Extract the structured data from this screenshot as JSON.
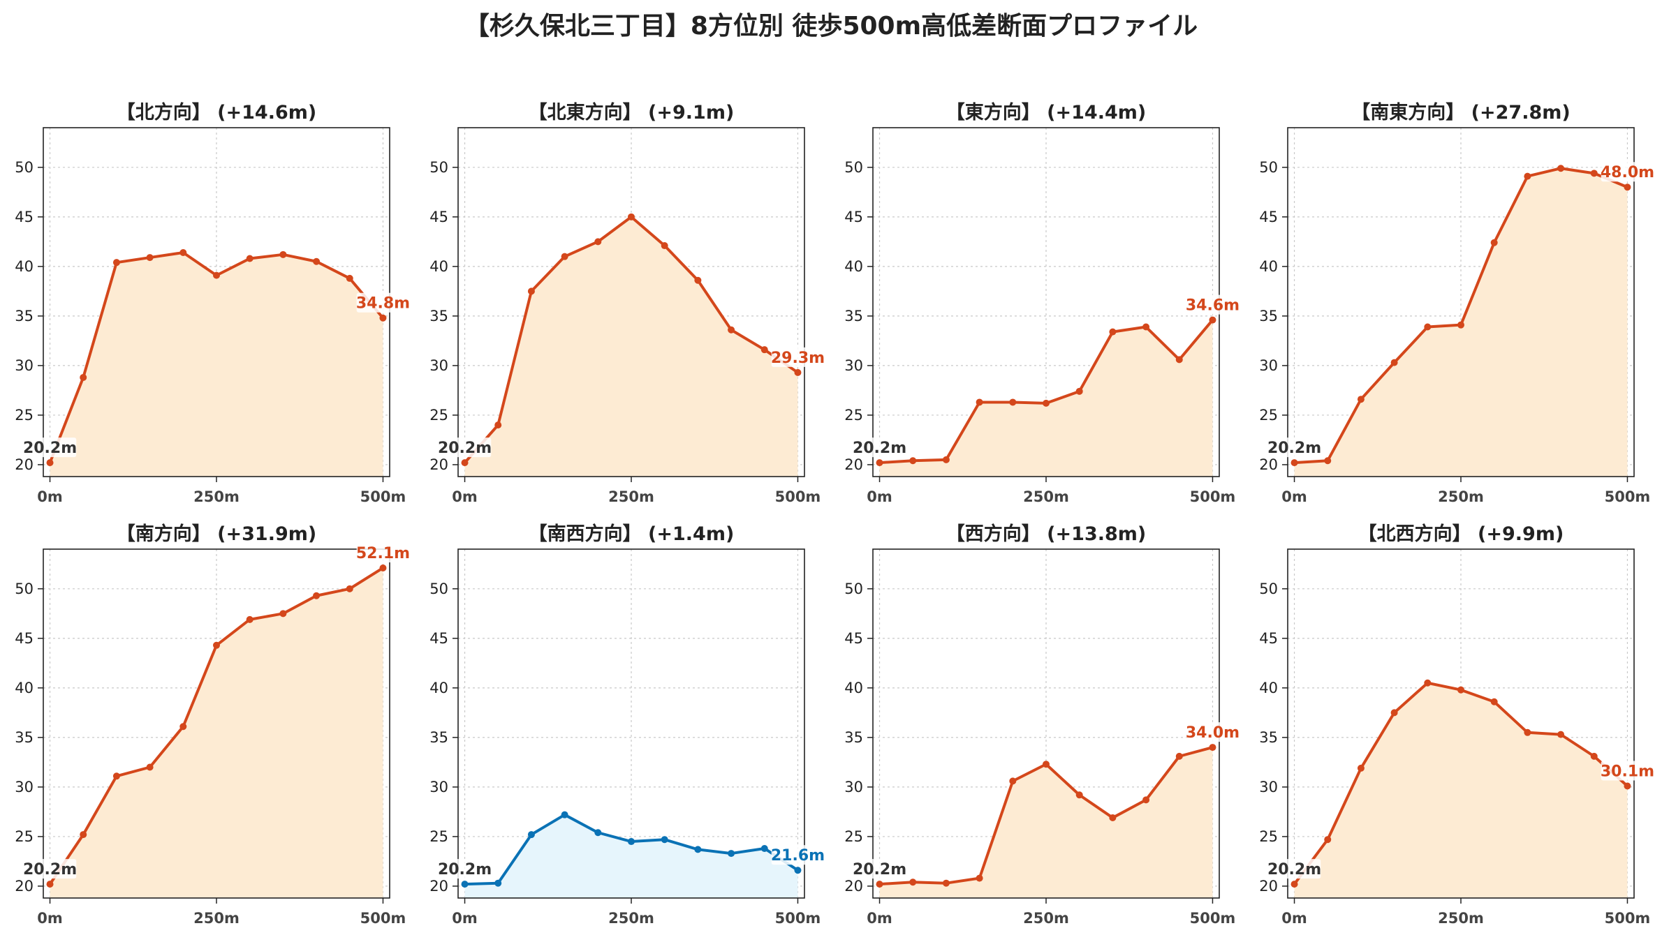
{
  "title": "【杉久保北三丁目】8方位別 徒歩500m高低差断面プロファイル",
  "colors": {
    "up_line": "#d4471b",
    "up_fill": "#fdebd3",
    "flat_line": "#0a72b5",
    "flat_fill": "#e6f5fc",
    "start_label": "#333333",
    "grid": "#c8c8c8",
    "axis": "#222222"
  },
  "chart_data": [
    {
      "type": "area",
      "title": "【北方向】 (+14.6m)",
      "theme": "up",
      "x": [
        0,
        50,
        100,
        150,
        200,
        250,
        300,
        350,
        400,
        450,
        500
      ],
      "y": [
        20.2,
        28.8,
        40.4,
        40.9,
        41.4,
        39.1,
        40.8,
        41.2,
        40.5,
        38.8,
        34.8
      ],
      "start_label": "20.2m",
      "end_label": "34.8m",
      "xticks": [
        0,
        250,
        500
      ],
      "xtick_labels": [
        "0m",
        "250m",
        "500m"
      ],
      "yticks": [
        20,
        25,
        30,
        35,
        40,
        45,
        50
      ],
      "ylim": [
        18.8,
        54
      ],
      "xlim": [
        -10,
        510
      ],
      "grid": true
    },
    {
      "type": "area",
      "title": "【北東方向】 (+9.1m)",
      "theme": "up",
      "x": [
        0,
        50,
        100,
        150,
        200,
        250,
        300,
        350,
        400,
        450,
        500
      ],
      "y": [
        20.2,
        24.0,
        37.5,
        41.0,
        42.5,
        45.0,
        42.1,
        38.6,
        33.6,
        31.6,
        29.3
      ],
      "start_label": "20.2m",
      "end_label": "29.3m",
      "xticks": [
        0,
        250,
        500
      ],
      "xtick_labels": [
        "0m",
        "250m",
        "500m"
      ],
      "yticks": [
        20,
        25,
        30,
        35,
        40,
        45,
        50
      ],
      "ylim": [
        18.8,
        54
      ],
      "xlim": [
        -10,
        510
      ],
      "grid": true
    },
    {
      "type": "area",
      "title": "【東方向】 (+14.4m)",
      "theme": "up",
      "x": [
        0,
        50,
        100,
        150,
        200,
        250,
        300,
        350,
        400,
        450,
        500
      ],
      "y": [
        20.2,
        20.4,
        20.5,
        26.3,
        26.3,
        26.2,
        27.4,
        33.4,
        33.9,
        30.6,
        34.6
      ],
      "start_label": "20.2m",
      "end_label": "34.6m",
      "xticks": [
        0,
        250,
        500
      ],
      "xtick_labels": [
        "0m",
        "250m",
        "500m"
      ],
      "yticks": [
        20,
        25,
        30,
        35,
        40,
        45,
        50
      ],
      "ylim": [
        18.8,
        54
      ],
      "xlim": [
        -10,
        510
      ],
      "grid": true
    },
    {
      "type": "area",
      "title": "【南東方向】 (+27.8m)",
      "theme": "up",
      "x": [
        0,
        50,
        100,
        150,
        200,
        250,
        300,
        350,
        400,
        450,
        500
      ],
      "y": [
        20.2,
        20.4,
        26.6,
        30.3,
        33.9,
        34.1,
        42.4,
        49.1,
        49.9,
        49.4,
        48.0
      ],
      "start_label": "20.2m",
      "end_label": "48.0m",
      "xticks": [
        0,
        250,
        500
      ],
      "xtick_labels": [
        "0m",
        "250m",
        "500m"
      ],
      "yticks": [
        20,
        25,
        30,
        35,
        40,
        45,
        50
      ],
      "ylim": [
        18.8,
        54
      ],
      "xlim": [
        -10,
        510
      ],
      "grid": true
    },
    {
      "type": "area",
      "title": "【南方向】 (+31.9m)",
      "theme": "up",
      "x": [
        0,
        50,
        100,
        150,
        200,
        250,
        300,
        350,
        400,
        450,
        500
      ],
      "y": [
        20.2,
        25.2,
        31.1,
        32.0,
        36.1,
        44.3,
        46.9,
        47.5,
        49.3,
        50.0,
        52.1
      ],
      "start_label": "20.2m",
      "end_label": "52.1m",
      "xticks": [
        0,
        250,
        500
      ],
      "xtick_labels": [
        "0m",
        "250m",
        "500m"
      ],
      "yticks": [
        20,
        25,
        30,
        35,
        40,
        45,
        50
      ],
      "ylim": [
        18.8,
        54
      ],
      "xlim": [
        -10,
        510
      ],
      "grid": true
    },
    {
      "type": "area",
      "title": "【南西方向】 (+1.4m)",
      "theme": "flat",
      "x": [
        0,
        50,
        100,
        150,
        200,
        250,
        300,
        350,
        400,
        450,
        500
      ],
      "y": [
        20.2,
        20.3,
        25.2,
        27.2,
        25.4,
        24.5,
        24.7,
        23.7,
        23.3,
        23.8,
        21.6
      ],
      "start_label": "20.2m",
      "end_label": "21.6m",
      "xticks": [
        0,
        250,
        500
      ],
      "xtick_labels": [
        "0m",
        "250m",
        "500m"
      ],
      "yticks": [
        20,
        25,
        30,
        35,
        40,
        45,
        50
      ],
      "ylim": [
        18.8,
        54
      ],
      "xlim": [
        -10,
        510
      ],
      "grid": true
    },
    {
      "type": "area",
      "title": "【西方向】 (+13.8m)",
      "theme": "up",
      "x": [
        0,
        50,
        100,
        150,
        200,
        250,
        300,
        350,
        400,
        450,
        500
      ],
      "y": [
        20.2,
        20.4,
        20.3,
        20.8,
        30.6,
        32.3,
        29.2,
        26.9,
        28.7,
        33.1,
        34.0
      ],
      "start_label": "20.2m",
      "end_label": "34.0m",
      "xticks": [
        0,
        250,
        500
      ],
      "xtick_labels": [
        "0m",
        "250m",
        "500m"
      ],
      "yticks": [
        20,
        25,
        30,
        35,
        40,
        45,
        50
      ],
      "ylim": [
        18.8,
        54
      ],
      "xlim": [
        -10,
        510
      ],
      "grid": true
    },
    {
      "type": "area",
      "title": "【北西方向】 (+9.9m)",
      "theme": "up",
      "x": [
        0,
        50,
        100,
        150,
        200,
        250,
        300,
        350,
        400,
        450,
        500
      ],
      "y": [
        20.2,
        24.7,
        31.9,
        37.5,
        40.5,
        39.8,
        38.6,
        35.5,
        35.3,
        33.1,
        30.1
      ],
      "start_label": "20.2m",
      "end_label": "30.1m",
      "xticks": [
        0,
        250,
        500
      ],
      "xtick_labels": [
        "0m",
        "250m",
        "500m"
      ],
      "yticks": [
        20,
        25,
        30,
        35,
        40,
        45,
        50
      ],
      "ylim": [
        18.8,
        54
      ],
      "xlim": [
        -10,
        510
      ],
      "grid": true
    }
  ]
}
